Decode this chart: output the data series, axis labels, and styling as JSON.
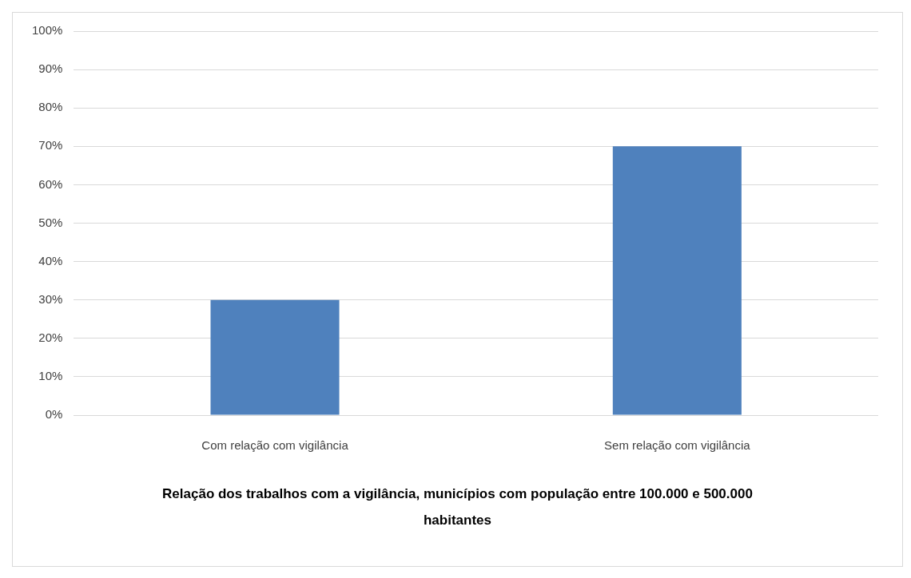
{
  "chart_data": {
    "type": "bar",
    "xlabel": "Relação dos trabalhos com a vigilância, municípios com população entre 100.000 e 500.000  habitantes",
    "categories": [
      "Com relação com vigilância",
      "Sem relação com vigilância"
    ],
    "values": [
      30,
      70
    ],
    "color": "#4f81bd",
    "ylim": [
      0,
      100
    ],
    "yticks": [
      {
        "value": 0,
        "label": "0%"
      },
      {
        "value": 10,
        "label": "10%"
      },
      {
        "value": 20,
        "label": "20%"
      },
      {
        "value": 30,
        "label": "30%"
      },
      {
        "value": 40,
        "label": "40%"
      },
      {
        "value": 50,
        "label": "50%"
      },
      {
        "value": 60,
        "label": "60%"
      },
      {
        "value": 70,
        "label": "70%"
      },
      {
        "value": 80,
        "label": "80%"
      },
      {
        "value": 90,
        "label": "90%"
      },
      {
        "value": 100,
        "label": "100%"
      }
    ],
    "grid": "y",
    "legend": false
  }
}
